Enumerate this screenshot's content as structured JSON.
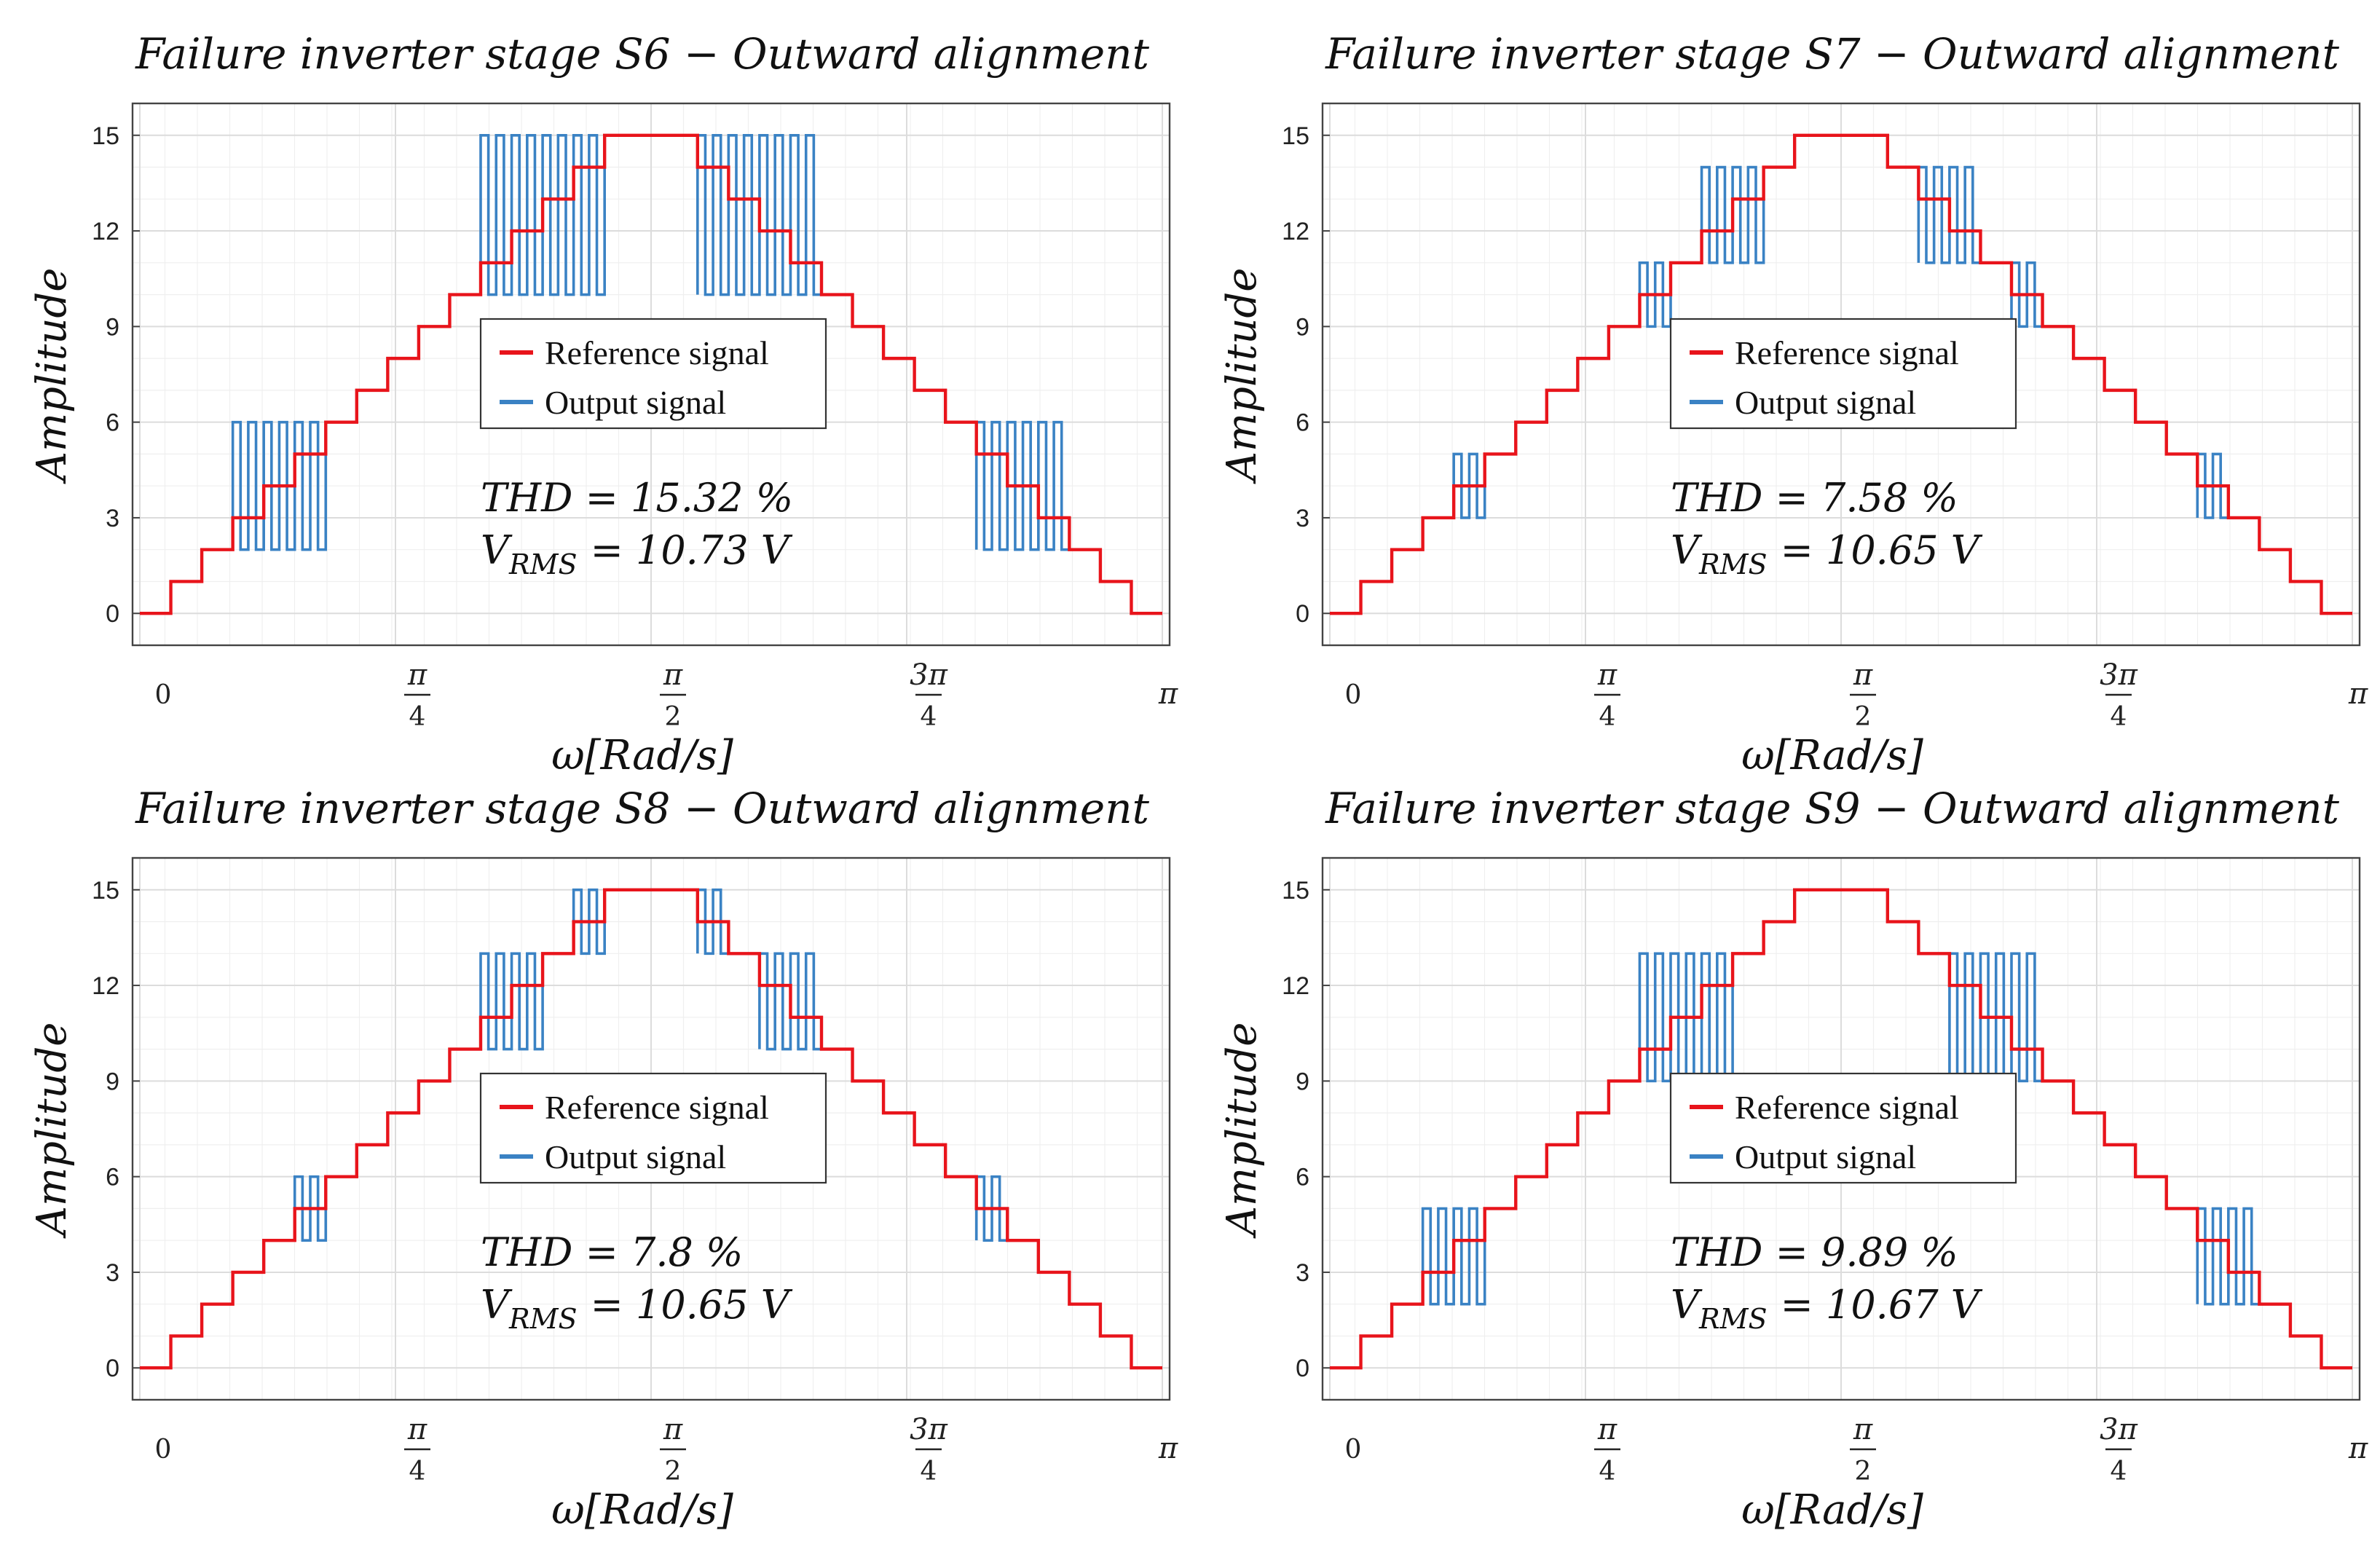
{
  "chart_data": [
    {
      "type": "line",
      "title": "Failure inverter stage S6 − Outward alignment",
      "xlabel": "ω[Rad/s]",
      "ylabel": "Amplitude",
      "ylim": [
        0,
        15
      ],
      "yticks": [
        0,
        3,
        6,
        9,
        12,
        15
      ],
      "xticks": [
        "0",
        "π/4",
        "π/2",
        "3π/4",
        "π"
      ],
      "grid": true,
      "legend": {
        "position": "center",
        "entries": [
          "Reference signal",
          "Output signal"
        ]
      },
      "annotations": {
        "thd": "THD = 15.32 %",
        "vrms_label": "V",
        "vrms_sub": "RMS",
        "vrms_value": "= 10.73 V"
      },
      "colors": {
        "reference": "#e8141b",
        "output": "#3a82c4"
      },
      "reference_levels": [
        0,
        1,
        2,
        3,
        4,
        5,
        6,
        7,
        8,
        9,
        10,
        11,
        12,
        13,
        14,
        15,
        15,
        15,
        14,
        13,
        12,
        11,
        10,
        9,
        8,
        7,
        6,
        5,
        4,
        3,
        2,
        1,
        0
      ],
      "series": [
        {
          "name": "Reference signal",
          "levels": [
            0,
            1,
            2,
            3,
            4,
            5,
            6,
            7,
            8,
            9,
            10,
            11,
            12,
            13,
            14,
            15,
            15,
            15,
            14,
            13,
            12,
            11,
            10,
            9,
            8,
            7,
            6,
            5,
            4,
            3,
            2,
            1,
            0
          ]
        },
        {
          "name": "Output signal",
          "fault_low": 2,
          "fault_high": 6,
          "fault_steps": [
            3,
            4,
            5
          ],
          "fault_low2": 10,
          "fault_high2": 15,
          "fault_steps2": [
            11,
            12,
            13,
            14
          ]
        }
      ]
    },
    {
      "type": "line",
      "title": "Failure inverter stage S7 − Outward alignment",
      "xlabel": "ω[Rad/s]",
      "ylabel": "Amplitude",
      "ylim": [
        0,
        15
      ],
      "yticks": [
        0,
        3,
        6,
        9,
        12,
        15
      ],
      "xticks": [
        "0",
        "π/4",
        "π/2",
        "3π/4",
        "π"
      ],
      "grid": true,
      "legend": {
        "position": "center",
        "entries": [
          "Reference signal",
          "Output signal"
        ]
      },
      "annotations": {
        "thd": "THD = 7.58 %",
        "vrms_label": "V",
        "vrms_sub": "RMS",
        "vrms_value": "= 10.65 V"
      },
      "colors": {
        "reference": "#e8141b",
        "output": "#3a82c4"
      },
      "series": [
        {
          "name": "Reference signal",
          "levels": [
            0,
            1,
            2,
            3,
            4,
            5,
            6,
            7,
            8,
            9,
            10,
            11,
            12,
            13,
            14,
            15,
            15,
            15,
            14,
            13,
            12,
            11,
            10,
            9,
            8,
            7,
            6,
            5,
            4,
            3,
            2,
            1,
            0
          ]
        },
        {
          "name": "Output signal",
          "fault_low": 3,
          "fault_high": 5,
          "fault_steps": [
            4
          ],
          "fault_low2": 9,
          "fault_high2": 11,
          "fault_steps2": [
            10
          ],
          "fault_low3": 11,
          "fault_high3": 14,
          "fault_steps3": [
            12,
            13
          ]
        }
      ]
    },
    {
      "type": "line",
      "title": "Failure inverter stage S8 − Outward alignment",
      "xlabel": "ω[Rad/s]",
      "ylabel": "Amplitude",
      "ylim": [
        0,
        15
      ],
      "yticks": [
        0,
        3,
        6,
        9,
        12,
        15
      ],
      "xticks": [
        "0",
        "π/4",
        "π/2",
        "3π/4",
        "π"
      ],
      "grid": true,
      "legend": {
        "position": "center",
        "entries": [
          "Reference signal",
          "Output signal"
        ]
      },
      "annotations": {
        "thd": "THD = 7.8 %",
        "vrms_label": "V",
        "vrms_sub": "RMS",
        "vrms_value": "= 10.65 V"
      },
      "colors": {
        "reference": "#e8141b",
        "output": "#3a82c4"
      },
      "series": [
        {
          "name": "Reference signal",
          "levels": [
            0,
            1,
            2,
            3,
            4,
            5,
            6,
            7,
            8,
            9,
            10,
            11,
            12,
            13,
            14,
            15,
            15,
            15,
            14,
            13,
            12,
            11,
            10,
            9,
            8,
            7,
            6,
            5,
            4,
            3,
            2,
            1,
            0
          ]
        },
        {
          "name": "Output signal",
          "fault_low": 4,
          "fault_high": 6,
          "fault_steps": [
            5
          ],
          "fault_low2": 10,
          "fault_high2": 13,
          "fault_steps2": [
            11,
            12
          ],
          "fault_low3": 13,
          "fault_high3": 15,
          "fault_steps3": [
            14
          ]
        }
      ]
    },
    {
      "type": "line",
      "title": "Failure inverter stage S9 − Outward alignment",
      "xlabel": "ω[Rad/s]",
      "ylabel": "Amplitude",
      "ylim": [
        0,
        15
      ],
      "yticks": [
        0,
        3,
        6,
        9,
        12,
        15
      ],
      "xticks": [
        "0",
        "π/4",
        "π/2",
        "3π/4",
        "π"
      ],
      "grid": true,
      "legend": {
        "position": "center",
        "entries": [
          "Reference signal",
          "Output signal"
        ]
      },
      "annotations": {
        "thd": "THD = 9.89 %",
        "vrms_label": "V",
        "vrms_sub": "RMS",
        "vrms_value": "= 10.67 V"
      },
      "colors": {
        "reference": "#e8141b",
        "output": "#3a82c4"
      },
      "series": [
        {
          "name": "Reference signal",
          "levels": [
            0,
            1,
            2,
            3,
            4,
            5,
            6,
            7,
            8,
            9,
            10,
            11,
            12,
            13,
            14,
            15,
            15,
            15,
            14,
            13,
            12,
            11,
            10,
            9,
            8,
            7,
            6,
            5,
            4,
            3,
            2,
            1,
            0
          ]
        },
        {
          "name": "Output signal",
          "fault_low": 2,
          "fault_high": 5,
          "fault_steps": [
            3,
            4
          ],
          "fault_low2": 9,
          "fault_high2": 13,
          "fault_steps2": [
            10,
            11,
            12
          ]
        }
      ]
    }
  ]
}
